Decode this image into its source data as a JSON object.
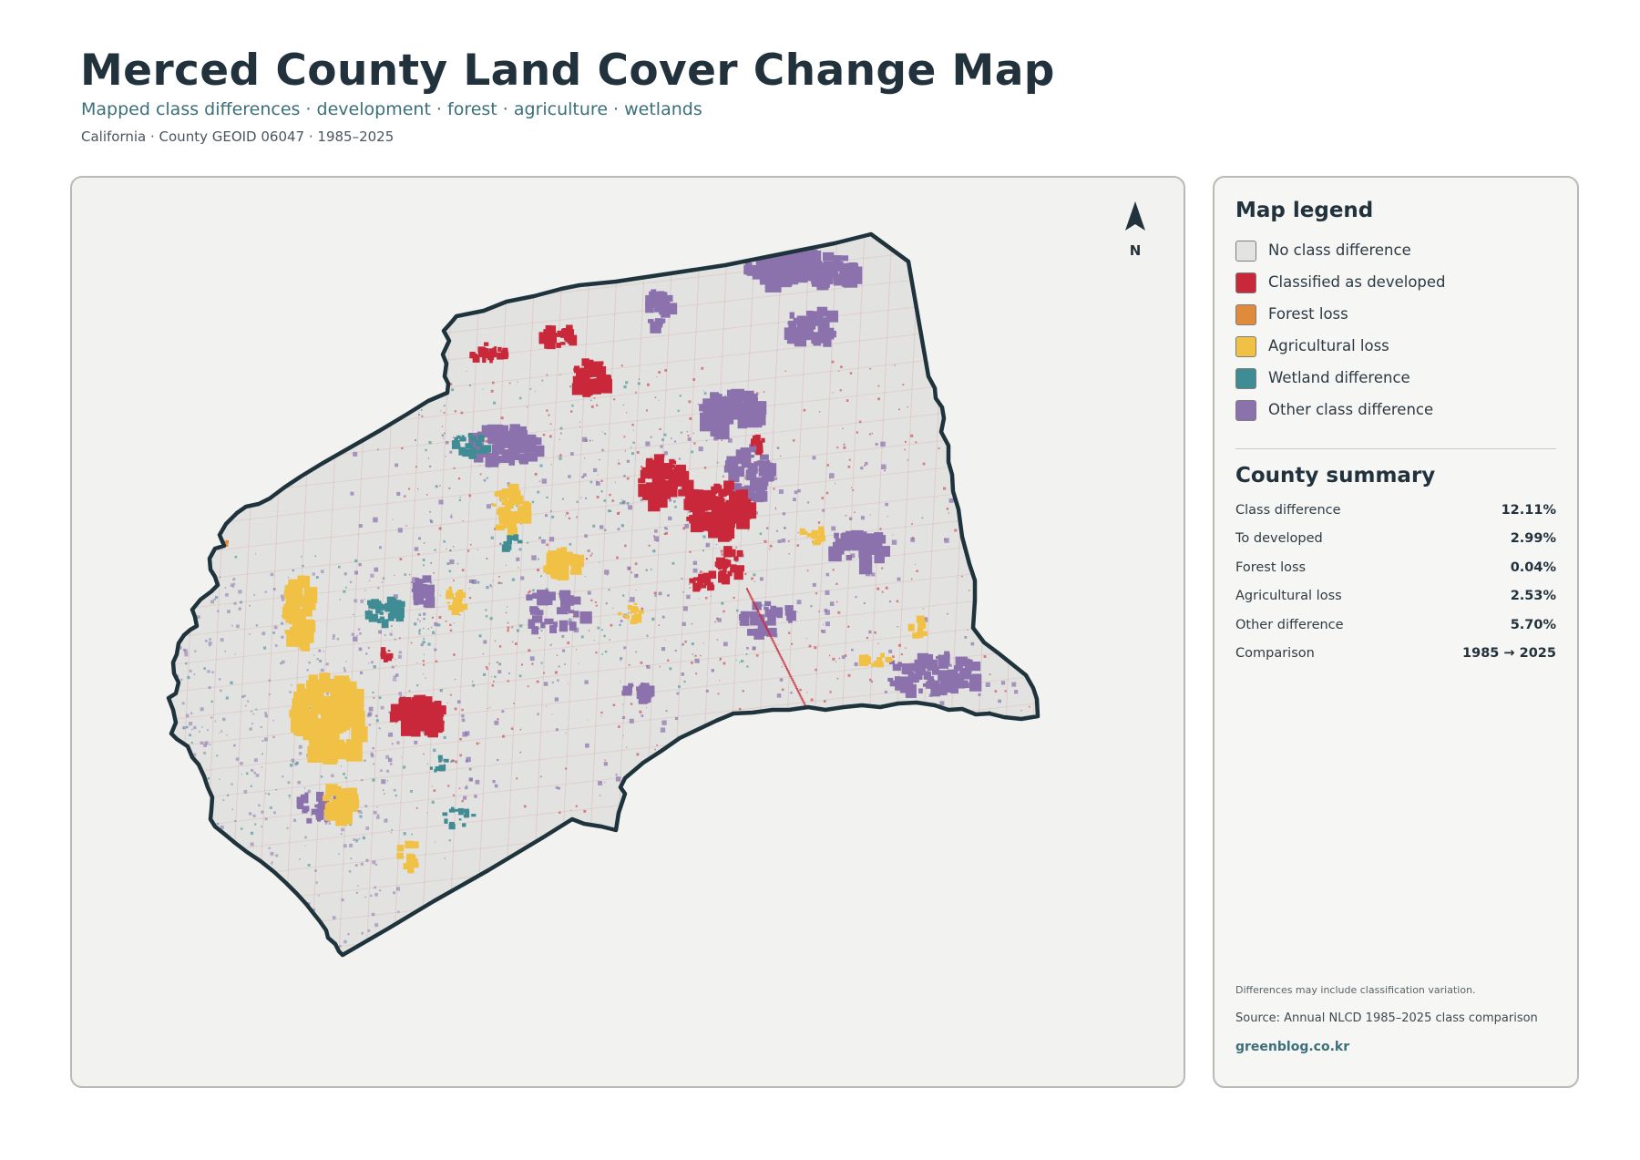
{
  "header": {
    "title": "Merced County Land Cover Change Map",
    "subtitle": "Mapped class differences · development · forest · agriculture · wetlands",
    "meta": "California · County GEOID 06047 · 1985–2025"
  },
  "map": {
    "north_label": "N",
    "colors": {
      "background": "#f2f2f0",
      "county_fill": "#e2e3e0",
      "outline": "#1f333d",
      "grid_lines": "#d27b83"
    }
  },
  "legend": {
    "title": "Map legend",
    "items": [
      {
        "label": "No class difference",
        "color": "#e3e3e1"
      },
      {
        "label": "Classified as developed",
        "color": "#c9283b"
      },
      {
        "label": "Forest loss",
        "color": "#e08b3b"
      },
      {
        "label": "Agricultural loss",
        "color": "#f1c146"
      },
      {
        "label": "Wetland difference",
        "color": "#3f8c94"
      },
      {
        "label": "Other class difference",
        "color": "#8c72ad"
      }
    ]
  },
  "summary": {
    "title": "County summary",
    "rows": [
      {
        "label": "Class difference",
        "value": "12.11%"
      },
      {
        "label": "To developed",
        "value": "2.99%"
      },
      {
        "label": "Forest loss",
        "value": "0.04%"
      },
      {
        "label": "Agricultural loss",
        "value": "2.53%"
      },
      {
        "label": "Other difference",
        "value": "5.70%"
      },
      {
        "label": "Comparison",
        "value": "1985 → 2025"
      }
    ]
  },
  "footer": {
    "note": "Differences may include classification variation.",
    "source": "Source: Annual NLCD 1985–2025 class comparison",
    "site": "greenblog.co.kr"
  }
}
